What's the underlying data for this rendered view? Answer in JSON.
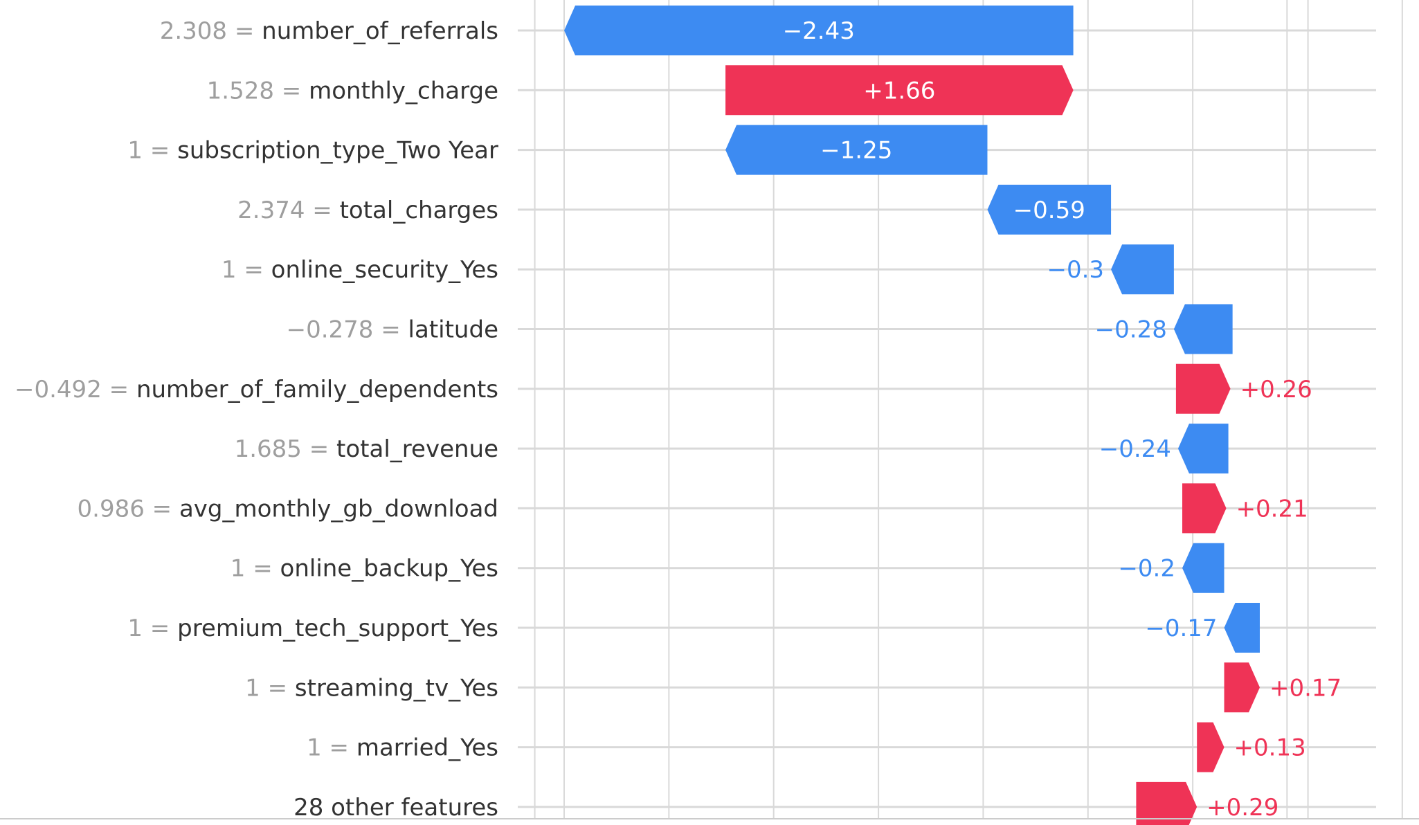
{
  "colors": {
    "positive": "#ef3356",
    "negative": "#3d8bf2",
    "grid": "#d9d9d9",
    "feature_value": "#9e9e9e",
    "feature_name": "#333333"
  },
  "chart_data": {
    "type": "bar",
    "subtype": "shap-waterfall",
    "title": "",
    "xlabel": "",
    "ylabel": "",
    "grid": true,
    "xlim": [
      -6.5,
      0.5
    ],
    "gridlines_x": [
      -6.5,
      -6.36,
      -5.86,
      -5.36,
      -4.86,
      -4.36,
      -3.86,
      -3.36,
      -2.91,
      -2.81,
      -2.36,
      -2.21,
      -1.86,
      -1.62
    ],
    "features": [
      {
        "value": "2.308",
        "name": "number_of_referrals",
        "contribution": -2.43,
        "label": "−2.43",
        "start": -3.93,
        "end": -6.36
      },
      {
        "value": "1.528",
        "name": "monthly_charge",
        "contribution": 1.66,
        "label": "+1.66",
        "start": -5.59,
        "end": -3.93
      },
      {
        "value": "1",
        "name": "subscription_type_Two Year",
        "contribution": -1.25,
        "label": "−1.25",
        "start": -4.34,
        "end": -5.59
      },
      {
        "value": "2.374",
        "name": "total_charges",
        "contribution": -0.59,
        "label": "−0.59",
        "start": -3.75,
        "end": -4.34
      },
      {
        "value": "1",
        "name": "online_security_Yes",
        "contribution": -0.3,
        "label": "−0.3",
        "start": -3.45,
        "end": -3.75
      },
      {
        "value": "−0.278",
        "name": "latitude",
        "contribution": -0.28,
        "label": "−0.28",
        "start": -3.17,
        "end": -3.45
      },
      {
        "value": "−0.492",
        "name": "number_of_family_dependents",
        "contribution": 0.26,
        "label": "+0.26",
        "start": -3.44,
        "end": -3.18
      },
      {
        "value": "1.685",
        "name": "total_revenue",
        "contribution": -0.24,
        "label": "−0.24",
        "start": -3.19,
        "end": -3.43
      },
      {
        "value": "0.986",
        "name": "avg_monthly_gb_download",
        "contribution": 0.21,
        "label": "+0.21",
        "start": -3.41,
        "end": -3.2
      },
      {
        "value": "1",
        "name": "online_backup_Yes",
        "contribution": -0.2,
        "label": "−0.2",
        "start": -3.21,
        "end": -3.41
      },
      {
        "value": "1",
        "name": "premium_tech_support_Yes",
        "contribution": -0.17,
        "label": "−0.17",
        "start": -3.04,
        "end": -3.21
      },
      {
        "value": "1",
        "name": "streaming_tv_Yes",
        "contribution": 0.17,
        "label": "+0.17",
        "start": -3.21,
        "end": -3.04
      },
      {
        "value": "1",
        "name": "married_Yes",
        "contribution": 0.13,
        "label": "+0.13",
        "start": -3.34,
        "end": -3.21
      },
      {
        "value": "",
        "name": "28 other features",
        "contribution": 0.29,
        "label": "+0.29",
        "start": -3.63,
        "end": -3.34
      }
    ]
  }
}
